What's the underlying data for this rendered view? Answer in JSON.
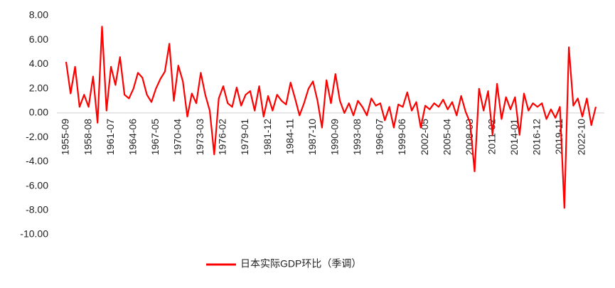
{
  "chart_data": {
    "type": "line",
    "categories": [
      "1955-09",
      null,
      null,
      null,
      null,
      "1958-08",
      null,
      null,
      null,
      null,
      "1961-07",
      null,
      null,
      null,
      null,
      "1964-06",
      null,
      null,
      null,
      null,
      "1967-05",
      null,
      null,
      null,
      null,
      "1970-04",
      null,
      null,
      null,
      null,
      "1973-03",
      null,
      null,
      null,
      null,
      "1976-02",
      null,
      null,
      null,
      null,
      "1979-01",
      null,
      null,
      null,
      null,
      "1981-12",
      null,
      null,
      null,
      null,
      "1984-11",
      null,
      null,
      null,
      null,
      "1987-10",
      null,
      null,
      null,
      null,
      "1990-09",
      null,
      null,
      null,
      null,
      "1993-08",
      null,
      null,
      null,
      null,
      "1996-07",
      null,
      null,
      null,
      null,
      "1999-06",
      null,
      null,
      null,
      null,
      "2002-05",
      null,
      null,
      null,
      null,
      "2005-04",
      null,
      null,
      null,
      null,
      "2008-03",
      null,
      null,
      null,
      null,
      "2011-02",
      null,
      null,
      null,
      null,
      "2014-01",
      null,
      null,
      null,
      null,
      "2016-12",
      null,
      null,
      null,
      null,
      "2019-11",
      null,
      null,
      null,
      null,
      "2022-10",
      null,
      null,
      null
    ],
    "series": [
      {
        "name": "日本实际GDP环比（季调）",
        "color": "#ff0000",
        "values": [
          4.2,
          1.6,
          3.8,
          0.5,
          1.5,
          0.5,
          3.0,
          -0.8,
          7.1,
          0.2,
          3.8,
          2.3,
          4.6,
          1.5,
          1.2,
          2.0,
          3.3,
          2.9,
          1.5,
          0.9,
          2.0,
          2.8,
          3.4,
          5.7,
          1.0,
          3.9,
          2.6,
          -0.3,
          1.6,
          0.8,
          3.3,
          1.5,
          0.2,
          -3.4,
          1.2,
          2.2,
          0.8,
          0.5,
          2.1,
          0.6,
          1.5,
          1.8,
          0.2,
          2.2,
          -0.3,
          1.4,
          0.2,
          1.5,
          1.0,
          0.7,
          2.5,
          1.2,
          -0.2,
          0.8,
          2.0,
          2.6,
          1.0,
          -1.2,
          2.7,
          0.8,
          3.2,
          1.0,
          0.0,
          0.8,
          -0.2,
          1.0,
          0.5,
          -0.2,
          1.2,
          0.6,
          0.8,
          -0.6,
          0.5,
          -1.2,
          0.7,
          0.5,
          1.7,
          0.2,
          0.9,
          -1.2,
          0.6,
          0.3,
          0.8,
          0.5,
          1.1,
          0.3,
          0.9,
          -0.2,
          1.4,
          0.1,
          -0.8,
          -4.8,
          2.0,
          0.2,
          1.8,
          -1.8,
          2.4,
          -0.5,
          1.3,
          0.3,
          1.3,
          -1.8,
          1.6,
          0.2,
          0.8,
          0.5,
          0.8,
          -0.5,
          0.3,
          -0.4,
          0.5,
          -7.8,
          5.4,
          0.6,
          1.2,
          -0.3,
          1.2,
          -1.0,
          0.5
        ]
      }
    ],
    "ylim": [
      -10,
      8
    ],
    "yticks": [
      {
        "value": 8,
        "label": "8.00"
      },
      {
        "value": 6,
        "label": "6.00"
      },
      {
        "value": 4,
        "label": "4.00"
      },
      {
        "value": 2,
        "label": "2.00"
      },
      {
        "value": 0,
        "label": "0.00"
      },
      {
        "value": -2,
        "label": "-2.00"
      },
      {
        "value": -4,
        "label": "-4.00"
      },
      {
        "value": -6,
        "label": "-6.00"
      },
      {
        "value": -8,
        "label": "-8.00"
      },
      {
        "value": -10,
        "label": "-10.00"
      }
    ],
    "legend": "bottom"
  }
}
